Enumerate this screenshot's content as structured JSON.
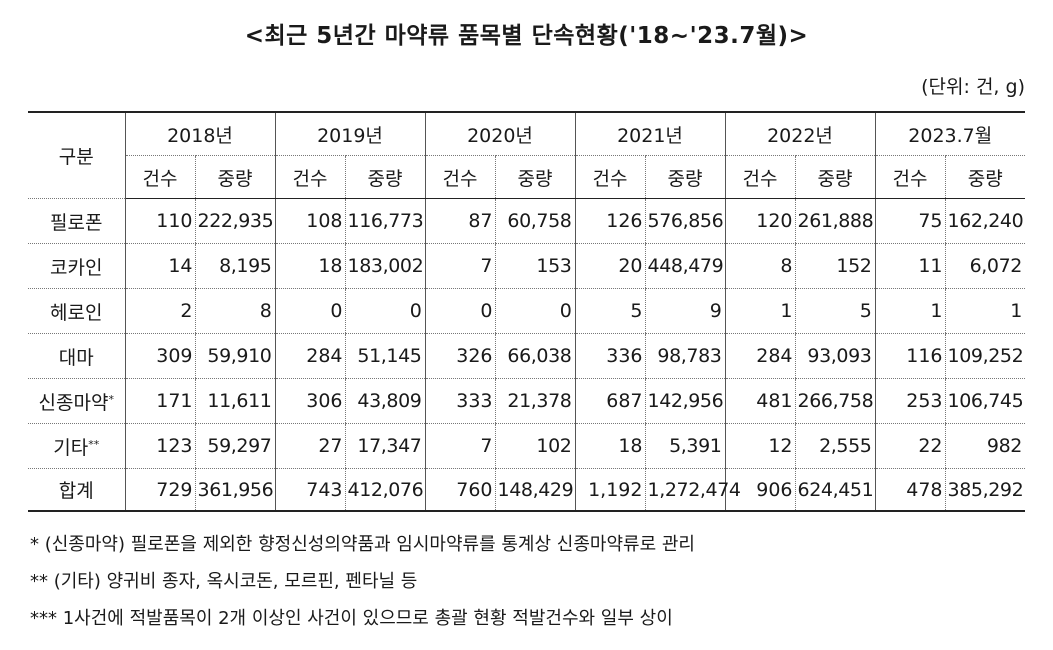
{
  "title": "<최근 5년간 마약류 품목별 단속현황('18~'23.7월)>",
  "unit": "(단위: 건, g)",
  "table": {
    "corner": "구분",
    "years": [
      "2018년",
      "2019년",
      "2020년",
      "2021년",
      "2022년",
      "2023.7월"
    ],
    "sub_count": "건수",
    "sub_weight": "중량",
    "rows": [
      {
        "label": "필로폰",
        "sup": "",
        "cells": [
          [
            "110",
            "222,935"
          ],
          [
            "108",
            "116,773"
          ],
          [
            "87",
            "60,758"
          ],
          [
            "126",
            "576,856"
          ],
          [
            "120",
            "261,888"
          ],
          [
            "75",
            "162,240"
          ]
        ]
      },
      {
        "label": "코카인",
        "sup": "",
        "cells": [
          [
            "14",
            "8,195"
          ],
          [
            "18",
            "183,002"
          ],
          [
            "7",
            "153"
          ],
          [
            "20",
            "448,479"
          ],
          [
            "8",
            "152"
          ],
          [
            "11",
            "6,072"
          ]
        ]
      },
      {
        "label": "헤로인",
        "sup": "",
        "cells": [
          [
            "2",
            "8"
          ],
          [
            "0",
            "0"
          ],
          [
            "0",
            "0"
          ],
          [
            "5",
            "9"
          ],
          [
            "1",
            "5"
          ],
          [
            "1",
            "1"
          ]
        ]
      },
      {
        "label": "대마",
        "sup": "",
        "cells": [
          [
            "309",
            "59,910"
          ],
          [
            "284",
            "51,145"
          ],
          [
            "326",
            "66,038"
          ],
          [
            "336",
            "98,783"
          ],
          [
            "284",
            "93,093"
          ],
          [
            "116",
            "109,252"
          ]
        ]
      },
      {
        "label": "신종마약",
        "sup": "*",
        "cells": [
          [
            "171",
            "11,611"
          ],
          [
            "306",
            "43,809"
          ],
          [
            "333",
            "21,378"
          ],
          [
            "687",
            "142,956"
          ],
          [
            "481",
            "266,758"
          ],
          [
            "253",
            "106,745"
          ]
        ]
      },
      {
        "label": "기타",
        "sup": "**",
        "cells": [
          [
            "123",
            "59,297"
          ],
          [
            "27",
            "17,347"
          ],
          [
            "7",
            "102"
          ],
          [
            "18",
            "5,391"
          ],
          [
            "12",
            "2,555"
          ],
          [
            "22",
            "982"
          ]
        ]
      },
      {
        "label": "합계",
        "sup": "",
        "cells": [
          [
            "729",
            "361,956"
          ],
          [
            "743",
            "412,076"
          ],
          [
            "760",
            "148,429"
          ],
          [
            "1,192",
            "1,272,474"
          ],
          [
            "906",
            "624,451"
          ],
          [
            "478",
            "385,292"
          ]
        ]
      }
    ]
  },
  "notes": [
    "* (신종마약) 필로폰을 제외한 향정신성의약품과 임시마약류를 통계상 신종마약류로 관리",
    "** (기타) 양귀비 종자, 옥시코돈, 모르핀, 펜타닐 등",
    "*** 1사건에 적발품목이 2개 이상인 사건이 있으므로 총괄 현황 적발건수와 일부 상이"
  ]
}
